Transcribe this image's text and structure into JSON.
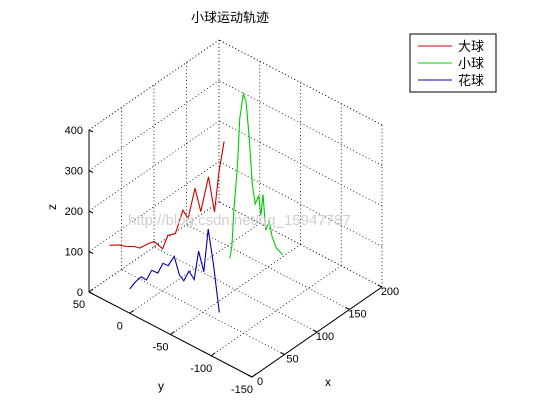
{
  "chart_data": {
    "type": "line",
    "title": "小球运动轨迹",
    "xlabel": "x",
    "ylabel": "y",
    "zlabel": "z",
    "xlim": [
      0,
      200
    ],
    "ylim": [
      -150,
      50
    ],
    "zlim": [
      0,
      400
    ],
    "xticks": [
      "0",
      "50",
      "100",
      "150",
      "200"
    ],
    "yticks": [
      "50",
      "0",
      "-50",
      "-100",
      "-150"
    ],
    "zticks": [
      "0",
      "100",
      "200",
      "300",
      "400"
    ],
    "grid": true,
    "legend_position": "top-right",
    "series": [
      {
        "name": "大球",
        "color": "#cc0000",
        "points": [
          [
            24,
            44,
            95
          ],
          [
            27,
            35,
            102
          ],
          [
            31,
            29,
            100
          ],
          [
            34,
            22,
            104
          ],
          [
            38,
            18,
            100
          ],
          [
            41,
            9,
            118
          ],
          [
            44,
            5,
            123
          ],
          [
            48,
            -2,
            108
          ],
          [
            51,
            -6,
            142
          ],
          [
            54,
            -13,
            150
          ],
          [
            58,
            -19,
            210
          ],
          [
            61,
            -23,
            190
          ],
          [
            64,
            -29,
            268
          ],
          [
            68,
            -33,
            210
          ],
          [
            71,
            -40,
            300
          ],
          [
            74,
            -45,
            215
          ],
          [
            77,
            -48,
            312
          ],
          [
            80,
            -52,
            390
          ]
        ]
      },
      {
        "name": "小球",
        "color": "#00cc00",
        "points": [
          [
            110,
            -35,
            50
          ],
          [
            112,
            -36,
            80
          ],
          [
            114,
            -37,
            170
          ],
          [
            117,
            -39,
            280
          ],
          [
            119,
            -40,
            390
          ],
          [
            122,
            -42,
            450
          ],
          [
            125,
            -43,
            430
          ],
          [
            128,
            -44,
            350
          ],
          [
            131,
            -46,
            220
          ],
          [
            134,
            -47,
            170
          ],
          [
            137,
            -49,
            190
          ],
          [
            139,
            -50,
            140
          ],
          [
            141,
            -51,
            190
          ],
          [
            144,
            -52,
            100
          ],
          [
            147,
            -54,
            120
          ],
          [
            150,
            -55,
            80
          ],
          [
            154,
            -57,
            50
          ],
          [
            160,
            -60,
            30
          ]
        ]
      },
      {
        "name": "花球",
        "color": "#0000aa",
        "points": [
          [
            0,
            0,
            60
          ],
          [
            2,
            -5,
            80
          ],
          [
            5,
            -10,
            95
          ],
          [
            7,
            -15,
            90
          ],
          [
            10,
            -19,
            115
          ],
          [
            13,
            -24,
            110
          ],
          [
            16,
            -28,
            135
          ],
          [
            19,
            -32,
            130
          ],
          [
            22,
            -37,
            155
          ],
          [
            25,
            -41,
            110
          ],
          [
            28,
            -44,
            95
          ],
          [
            31,
            -48,
            120
          ],
          [
            34,
            -52,
            100
          ],
          [
            37,
            -55,
            170
          ],
          [
            40,
            -59,
            120
          ],
          [
            43,
            -62,
            225
          ],
          [
            46,
            -66,
            140
          ],
          [
            50,
            -70,
            20
          ]
        ]
      }
    ]
  },
  "watermark": "http://blog.csdn.net/qq_15947787"
}
